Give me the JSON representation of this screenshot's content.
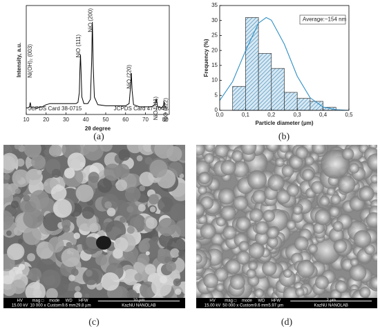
{
  "chart_data": [
    {
      "type": "line",
      "ylabel": "Intensity, a.u.",
      "xlabel": "2θ degree",
      "x": [
        10,
        11,
        11.6,
        12,
        12.4,
        13,
        15,
        18,
        20,
        22,
        25,
        28,
        30,
        33,
        35,
        36,
        36.7,
        37.0,
        37.3,
        37.6,
        38,
        39,
        41,
        42.3,
        42.9,
        43.3,
        43.7,
        44.3,
        46,
        50,
        55,
        60,
        61.8,
        62.5,
        62.9,
        63.3,
        64,
        67,
        70,
        73,
        74.8,
        75.2,
        75.4,
        75.7,
        76.2,
        78,
        79,
        79.4,
        79.8,
        80
      ],
      "series": [
        {
          "color": "#000000",
          "values": [
            6,
            6,
            7,
            11,
            7,
            6,
            6,
            7,
            9,
            10,
            10,
            10,
            10,
            10,
            10,
            11,
            20,
            40,
            55,
            38,
            16,
            10,
            10,
            14,
            48,
            85,
            45,
            16,
            9,
            8,
            8,
            8,
            10,
            25,
            38,
            22,
            9,
            7,
            7,
            7,
            9,
            13,
            14,
            11,
            7,
            6,
            8,
            12,
            8,
            6
          ]
        }
      ],
      "xlim": [
        10,
        82
      ],
      "xticks": [
        10,
        20,
        30,
        40,
        50,
        60,
        70,
        80
      ],
      "ylim": [
        0,
        100
      ],
      "annotations": [
        "Ni(OH)₂ (003)",
        "NiO (111)",
        "NiO (200)",
        "NiO (220)",
        "NiO (311)",
        "NiO (222)"
      ],
      "notes": [
        "JCPDS Card 38-0715",
        "JCPDS Card 47-1049"
      ]
    },
    {
      "type": "histogram",
      "ylabel": "Frequency (%)",
      "xlabel": "Particle diameter (μm)",
      "bins": [
        0.05,
        0.1,
        0.15,
        0.2,
        0.25,
        0.3,
        0.35,
        0.4,
        0.45
      ],
      "values": [
        8,
        31,
        19,
        14,
        6,
        4,
        3,
        1
      ],
      "color": "#bcd9ea",
      "curve": {
        "color": "#2f8fc4",
        "x": [
          0,
          0.05,
          0.1,
          0.15,
          0.18,
          0.2,
          0.25,
          0.3,
          0.35,
          0.4,
          0.45,
          0.5
        ],
        "values": [
          3.3,
          9.6,
          19.9,
          29.1,
          31,
          30.1,
          22.1,
          11.4,
          4.2,
          1.1,
          0.2,
          0
        ]
      },
      "xlim": [
        0,
        0.5
      ],
      "xticks": [
        {
          "value": 0,
          "label": "0,0"
        },
        {
          "value": 0.1,
          "label": "0,1"
        },
        {
          "value": 0.2,
          "label": "0,2"
        },
        {
          "value": 0.3,
          "label": "0,3"
        },
        {
          "value": 0.4,
          "label": "0,4"
        },
        {
          "value": 0.5,
          "label": "0,5"
        }
      ],
      "ylim": [
        0,
        35
      ],
      "yticks": [
        0,
        5,
        10,
        15,
        20,
        25,
        30,
        35
      ],
      "legend_text": "Average:~154 nm"
    }
  ],
  "panels": [
    "(a)",
    "(b)",
    "(c)",
    "(d)"
  ],
  "sem": [
    {
      "headers": [
        "HV",
        "mag □",
        "mode",
        "WD",
        "HFW"
      ],
      "values": [
        "15.00 kV",
        "10 000 x",
        "Custom",
        "9.6 mm",
        "29.8 µm"
      ],
      "scale": "10 µm",
      "lab": "KazNU NANOLAB"
    },
    {
      "headers": [
        "HV",
        "mag □",
        "mode",
        "WD",
        "HFW"
      ],
      "values": [
        "15.00 kV",
        "50 000 x",
        "Custom",
        "9.6 mm",
        "5.97 µm"
      ],
      "scale": "2 µm",
      "lab": "KazNU NANOLAB"
    }
  ]
}
